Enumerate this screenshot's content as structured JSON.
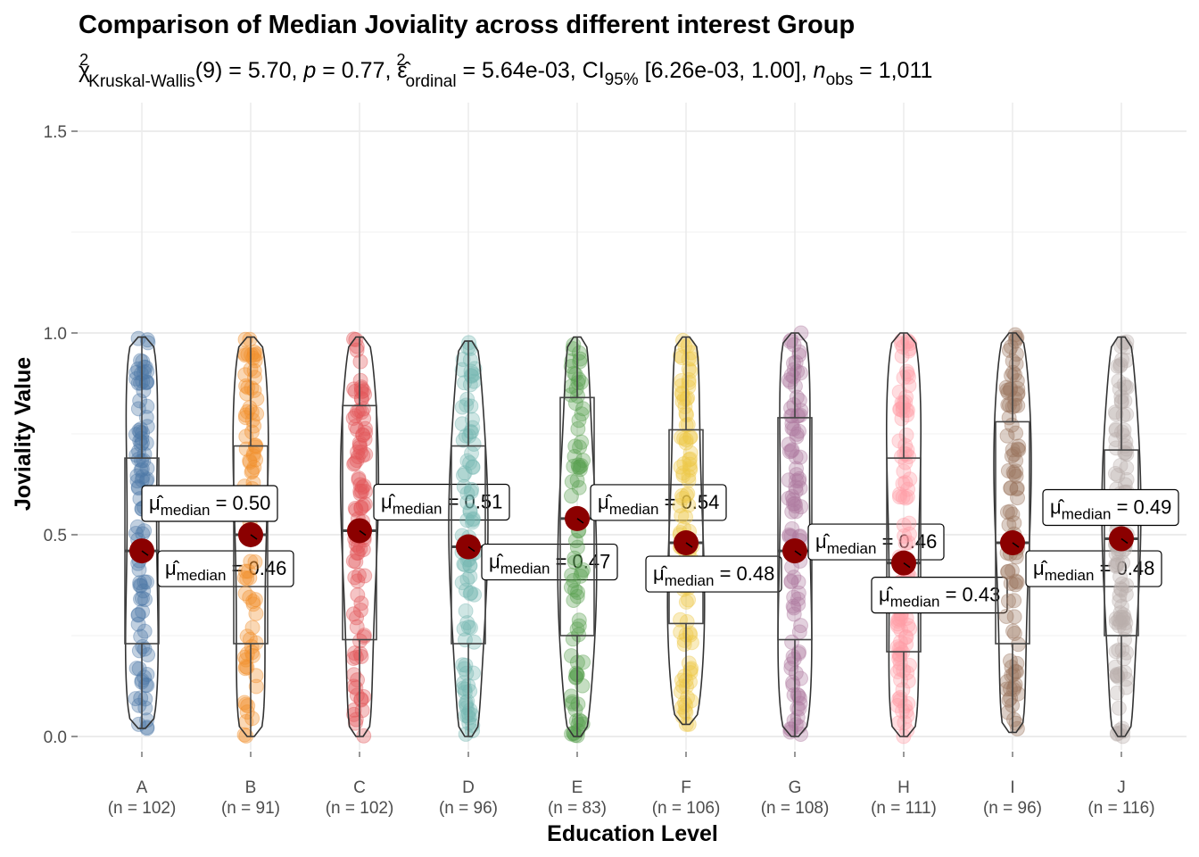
{
  "chart_data": {
    "type": "violin-box",
    "title": "Comparison of Median Joviality across different interest Group",
    "subtitle": {
      "stat": "χ²Kruskal-Wallis(9) = 5.70",
      "parts": [
        "χ",
        "2",
        "Kruskal-Wallis",
        "(9) = 5.70, ",
        "p",
        " = 0.77, ",
        "ε̂",
        "2",
        "ordinal",
        " = 5.64e-03, CI",
        "95%",
        " [6.26e-03, 1.00], ",
        "n",
        "obs",
        " = 1,011"
      ]
    },
    "xlabel": "Education Level",
    "ylabel": "Joviality Value",
    "ylim": [
      -0.05,
      1.55
    ],
    "yticks": [
      0.0,
      0.5,
      1.0,
      1.5
    ],
    "ytick_labels": [
      "0.0",
      "0.5",
      "1.0",
      "1.5"
    ],
    "grid": true,
    "groups": [
      {
        "name": "A",
        "n_label": "(n = 102)",
        "color": "#4E79A7",
        "median": 0.46,
        "q1": 0.23,
        "q3": 0.69,
        "min": 0.02,
        "max": 0.99,
        "label": "0.46"
      },
      {
        "name": "B",
        "n_label": "(n = 91)",
        "color": "#F28E2B",
        "median": 0.5,
        "q1": 0.23,
        "q3": 0.72,
        "min": 0.0,
        "max": 0.99,
        "label": "0.50"
      },
      {
        "name": "C",
        "n_label": "(n = 102)",
        "color": "#E15759",
        "median": 0.51,
        "q1": 0.24,
        "q3": 0.82,
        "min": 0.0,
        "max": 0.99,
        "label": "0.51"
      },
      {
        "name": "D",
        "n_label": "(n = 96)",
        "color": "#76B7B2",
        "median": 0.47,
        "q1": 0.23,
        "q3": 0.72,
        "min": 0.0,
        "max": 0.98,
        "label": "0.47"
      },
      {
        "name": "E",
        "n_label": "(n = 83)",
        "color": "#59A14F",
        "median": 0.54,
        "q1": 0.25,
        "q3": 0.84,
        "min": 0.0,
        "max": 0.99,
        "label": "0.54"
      },
      {
        "name": "F",
        "n_label": "(n = 106)",
        "color": "#EDC948",
        "median": 0.48,
        "q1": 0.28,
        "q3": 0.76,
        "min": 0.03,
        "max": 0.99,
        "label": "0.48"
      },
      {
        "name": "G",
        "n_label": "(n = 108)",
        "color": "#B07AA1",
        "median": 0.46,
        "q1": 0.24,
        "q3": 0.79,
        "min": 0.0,
        "max": 1.0,
        "label": "0.46"
      },
      {
        "name": "H",
        "n_label": "(n = 111)",
        "color": "#FF9DA7",
        "median": 0.43,
        "q1": 0.21,
        "q3": 0.69,
        "min": 0.0,
        "max": 1.0,
        "label": "0.43"
      },
      {
        "name": "I",
        "n_label": "(n = 96)",
        "color": "#9C755F",
        "median": 0.48,
        "q1": 0.23,
        "q3": 0.78,
        "min": 0.01,
        "max": 1.0,
        "label": "0.48"
      },
      {
        "name": "J",
        "n_label": "(n = 116)",
        "color": "#BAB0AC",
        "median": 0.49,
        "q1": 0.25,
        "q3": 0.71,
        "min": 0.0,
        "max": 0.99,
        "label": "0.49"
      }
    ],
    "median_label_prefix": "μ̂median = ",
    "median_point_color": "#8B0000"
  }
}
